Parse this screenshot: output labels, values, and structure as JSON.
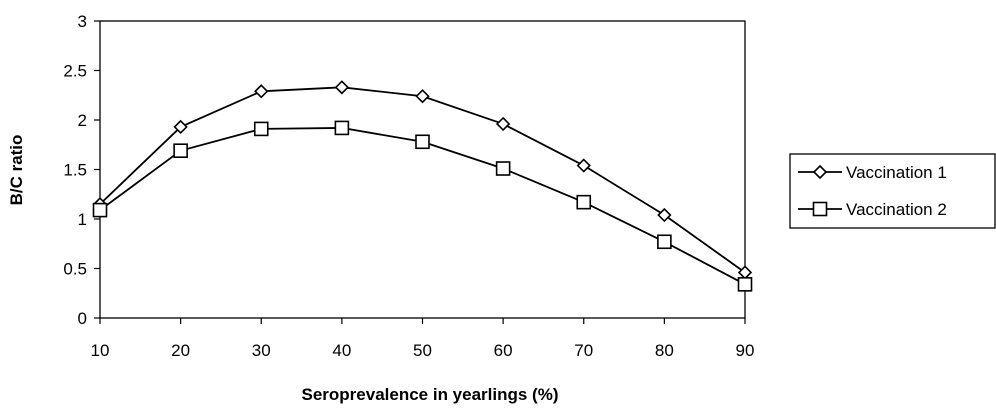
{
  "chart_data": {
    "type": "line",
    "title": "",
    "xlabel": "Seroprevalence in yearlings (%)",
    "ylabel": "B/C ratio",
    "x": [
      10,
      20,
      30,
      40,
      50,
      60,
      70,
      80,
      90
    ],
    "x_ticks": [
      "10",
      "20",
      "30",
      "40",
      "50",
      "60",
      "70",
      "80",
      "90"
    ],
    "y_ticks": [
      "0",
      "0.5",
      "1",
      "1.5",
      "2",
      "2.5",
      "3"
    ],
    "xlim": [
      10,
      90
    ],
    "ylim": [
      0,
      3
    ],
    "grid": false,
    "legend_position": "right",
    "series": [
      {
        "name": "Vaccination 1",
        "marker": "diamond",
        "color": "#000000",
        "values": [
          1.15,
          1.93,
          2.29,
          2.33,
          2.24,
          1.96,
          1.54,
          1.04,
          0.46
        ]
      },
      {
        "name": "Vaccination 2",
        "marker": "square",
        "color": "#000000",
        "values": [
          1.09,
          1.69,
          1.91,
          1.92,
          1.78,
          1.51,
          1.17,
          0.77,
          0.34
        ]
      }
    ]
  }
}
